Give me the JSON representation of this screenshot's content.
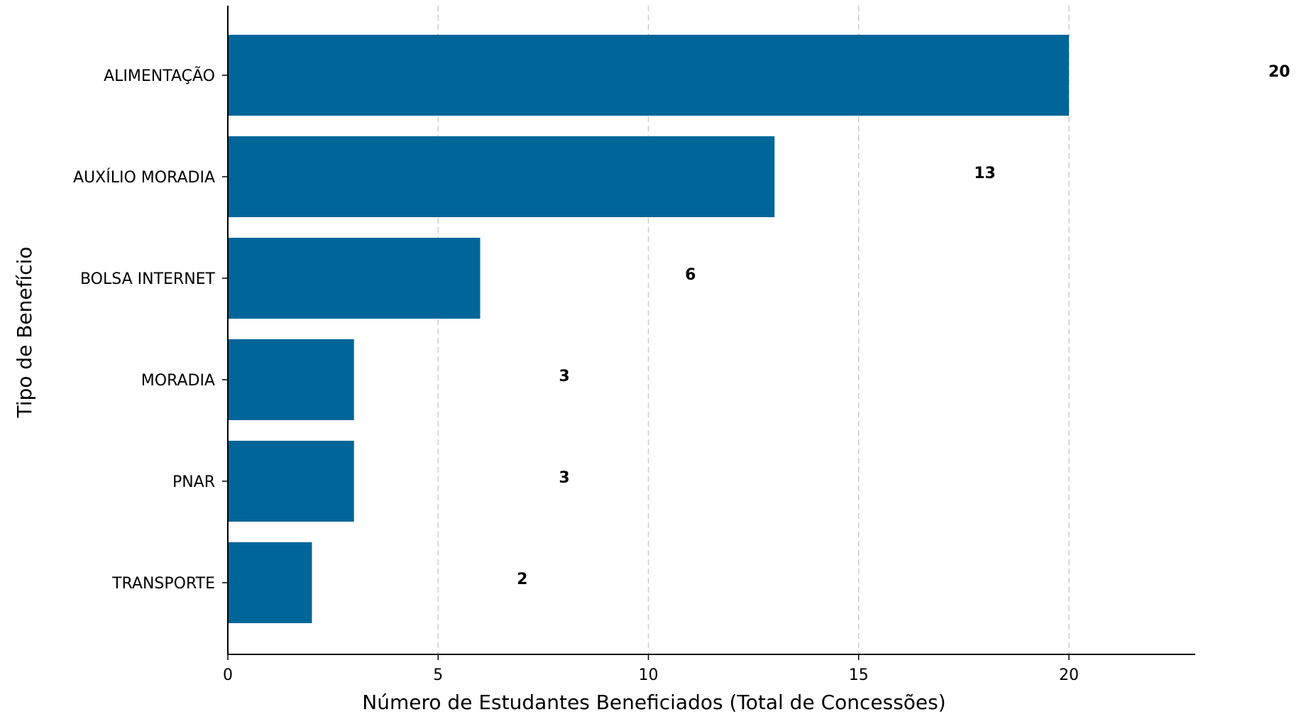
{
  "chart_data": {
    "type": "bar",
    "orientation": "horizontal",
    "title": "",
    "xlabel": "Número de Estudantes Beneficiados (Total de Concessões)",
    "ylabel": "Tipo de Benefício",
    "categories": [
      "ALIMENTAÇÃO",
      "AUXÍLIO MORADIA",
      "BOLSA INTERNET",
      "MORADIA",
      "PNAR",
      "TRANSPORTE"
    ],
    "values": [
      20,
      13,
      6,
      3,
      3,
      2
    ],
    "value_labels": [
      "20",
      "13",
      "6",
      "3",
      "3",
      "2"
    ],
    "xticks": [
      0,
      5,
      10,
      15,
      20
    ],
    "xtick_labels": [
      "0",
      "5",
      "10",
      "15",
      "20"
    ],
    "xlim": [
      0,
      23
    ],
    "grid": "x-axis dashed",
    "legend": "none",
    "colors": {
      "bar": "#006699",
      "grid": "#cccccc",
      "axis": "#000000"
    }
  }
}
